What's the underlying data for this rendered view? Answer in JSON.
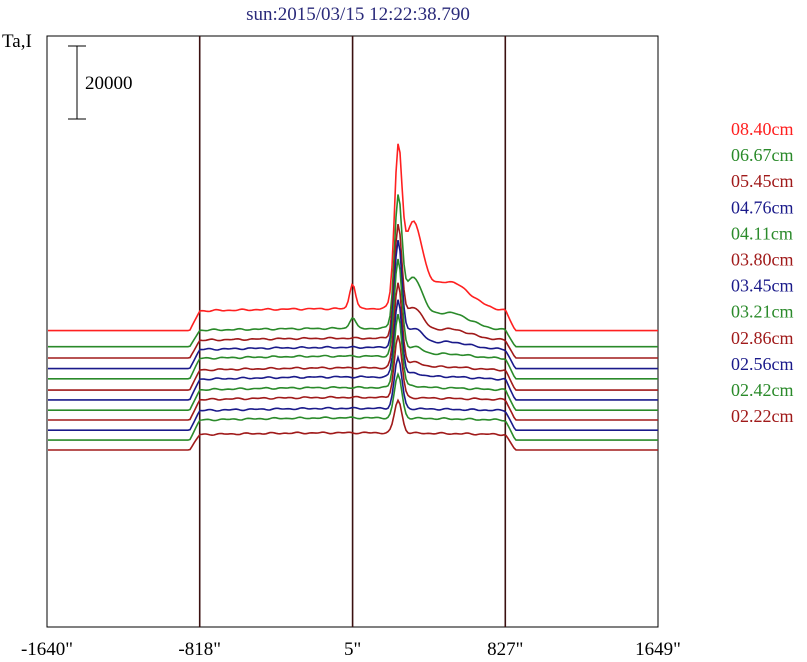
{
  "chart_data": {
    "type": "line",
    "title": "sun:2015/03/15 12:22:38.790",
    "ylabel": "Ta,I",
    "xlabel": "",
    "scale_bar": {
      "label": "20000",
      "value": 20000
    },
    "x_ticks": [
      "-1640\"",
      "-818\"",
      "5\"",
      "827\"",
      "1649\""
    ],
    "x_tick_values": [
      -1640,
      -818,
      5,
      827,
      1649
    ],
    "xlim": [
      -1640,
      1649
    ],
    "vertical_lines": [
      -818,
      5,
      827
    ],
    "grid": false,
    "legend_placement": "right",
    "series": [
      {
        "name": "08.40cm",
        "color": "#ff2020",
        "baseline": 16000,
        "plateau": 6000,
        "peak": 39000,
        "peak_x": 250,
        "sidepeak": 22000,
        "sidepeak_x": 330,
        "hump": 7000,
        "hump_x": 5
      },
      {
        "name": "06.67cm",
        "color": "#2a8a2a",
        "baseline": 11600,
        "plateau": 5000,
        "peak": 33000,
        "peak_x": 250,
        "sidepeak": 13000,
        "sidepeak_x": 330,
        "hump": 3000,
        "hump_x": 5
      },
      {
        "name": "05.45cm",
        "color": "#a01a1a",
        "baseline": 8500,
        "plateau": 5400,
        "peak": 29000,
        "peak_x": 250,
        "sidepeak": 8000,
        "sidepeak_x": 330,
        "hump": 0,
        "hump_x": 5
      },
      {
        "name": "04.76cm",
        "color": "#1a1a8a",
        "baseline": 5600,
        "plateau": 5800,
        "peak": 28000,
        "peak_x": 250,
        "sidepeak": 5000,
        "sidepeak_x": 330,
        "hump": 0,
        "hump_x": 5
      },
      {
        "name": "04.11cm",
        "color": "#2a8a2a",
        "baseline": 2800,
        "plateau": 6200,
        "peak": 26000,
        "peak_x": 250,
        "sidepeak": 2500,
        "sidepeak_x": 330,
        "hump": 0,
        "hump_x": 5
      },
      {
        "name": "03.80cm",
        "color": "#a01a1a",
        "baseline": -300,
        "plateau": 6100,
        "peak": 23000,
        "peak_x": 250,
        "sidepeak": 1500,
        "sidepeak_x": 330,
        "hump": 0,
        "hump_x": 5
      },
      {
        "name": "03.45cm",
        "color": "#1a1a8a",
        "baseline": -3000,
        "plateau": 6300,
        "peak": 21000,
        "peak_x": 250,
        "sidepeak": 1000,
        "sidepeak_x": 330,
        "hump": 0,
        "hump_x": 5
      },
      {
        "name": "03.21cm",
        "color": "#2a8a2a",
        "baseline": -5800,
        "plateau": 6200,
        "peak": 20000,
        "peak_x": 250,
        "sidepeak": 500,
        "sidepeak_x": 330,
        "hump": 0,
        "hump_x": 5
      },
      {
        "name": "02.86cm",
        "color": "#a01a1a",
        "baseline": -8500,
        "plateau": 6200,
        "peak": 17000,
        "peak_x": 250,
        "sidepeak": 0,
        "sidepeak_x": 330,
        "hump": 0,
        "hump_x": 5
      },
      {
        "name": "02.56cm",
        "color": "#1a1a8a",
        "baseline": -11300,
        "plateau": 6000,
        "peak": 14000,
        "peak_x": 250,
        "sidepeak": 0,
        "sidepeak_x": 330,
        "hump": 0,
        "hump_x": 5
      },
      {
        "name": "02.42cm",
        "color": "#2a8a2a",
        "baseline": -14000,
        "plateau": 6100,
        "peak": 12000,
        "peak_x": 250,
        "sidepeak": 0,
        "sidepeak_x": 330,
        "hump": 0,
        "hump_x": 5
      },
      {
        "name": "02.22cm",
        "color": "#a01a1a",
        "baseline": -16700,
        "plateau": 4700,
        "peak": 9000,
        "peak_x": 250,
        "sidepeak": 0,
        "sidepeak_x": 330,
        "hump": 0,
        "hump_x": 5
      }
    ]
  }
}
